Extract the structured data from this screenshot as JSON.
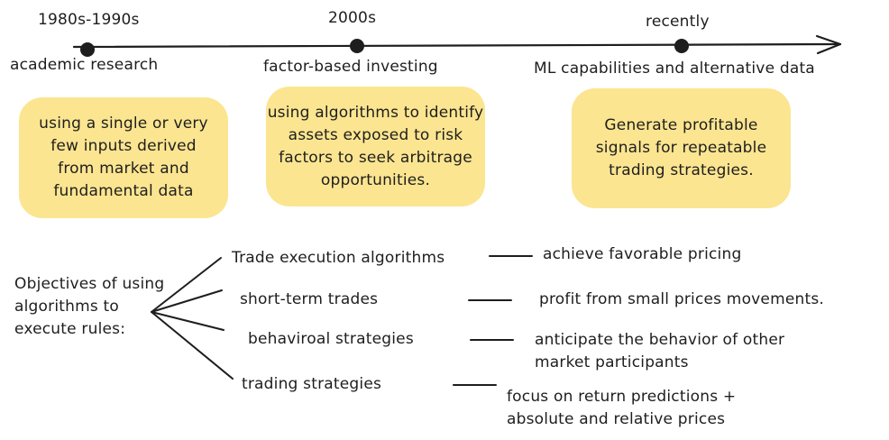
{
  "timeline": {
    "periods": [
      {
        "label": "1980s-1990s",
        "caption": "academic research",
        "detail": "using a single or very few inputs derived from market and fundamental data"
      },
      {
        "label": "2000s",
        "caption": "factor-based investing",
        "detail": "using algorithms to identify assets exposed to risk factors to seek arbitrage opportunities."
      },
      {
        "label": "recently",
        "caption": "ML capabilities and alternative data",
        "detail": "Generate profitable signals for repeatable trading strategies."
      }
    ]
  },
  "objectives": {
    "root": "Objectives of using algorithms to execute rules:",
    "branches": [
      {
        "name": "Trade execution algorithms",
        "goal": "achieve favorable pricing"
      },
      {
        "name": "short-term trades",
        "goal": "profit from small prices movements."
      },
      {
        "name": "behaviroal strategies",
        "goal": "anticipate the behavior of other market participants"
      },
      {
        "name": "trading strategies",
        "goal": "focus on return predictions + absolute and relative prices"
      }
    ]
  },
  "colors": {
    "ink": "#1e1e1e",
    "box_fill": "#fce590"
  }
}
